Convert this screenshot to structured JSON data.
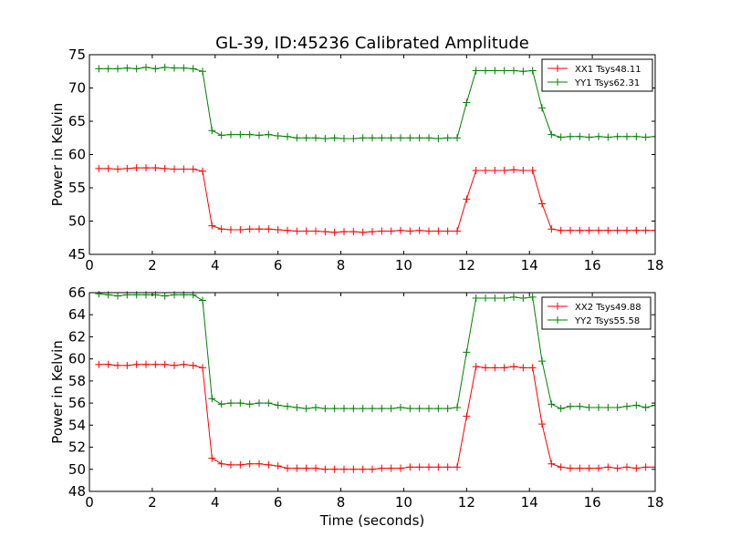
{
  "chart_data": [
    {
      "type": "line",
      "title": "GL-39, ID:45236 Calibrated Amplitude",
      "xlabel": "",
      "ylabel": "Power in Kelvin",
      "xlim": [
        0,
        18
      ],
      "ylim": [
        45,
        75
      ],
      "xticks": [
        "0",
        "2",
        "4",
        "6",
        "8",
        "10",
        "12",
        "14",
        "16",
        "18"
      ],
      "yticks": [
        "45",
        "50",
        "55",
        "60",
        "65",
        "70",
        "75"
      ],
      "legend_position": "top-right",
      "grid": false,
      "x": [
        0.3,
        0.6,
        0.9,
        1.2,
        1.5,
        1.8,
        2.1,
        2.4,
        2.7,
        3.0,
        3.3,
        3.6,
        3.9,
        4.2,
        4.5,
        4.8,
        5.1,
        5.4,
        5.7,
        6.0,
        6.3,
        6.6,
        6.9,
        7.2,
        7.5,
        7.8,
        8.1,
        8.4,
        8.7,
        9.0,
        9.3,
        9.6,
        9.9,
        10.2,
        10.5,
        10.8,
        11.1,
        11.4,
        11.7,
        12.0,
        12.3,
        12.6,
        12.9,
        13.2,
        13.5,
        13.8,
        14.1,
        14.4,
        14.7,
        15.0,
        15.3,
        15.6,
        15.9,
        16.2,
        16.5,
        16.8,
        17.1,
        17.4,
        17.7,
        18.0
      ],
      "series": [
        {
          "name": "XX1 Tsys48.11",
          "color": "#ff0000",
          "values": [
            57.9,
            57.9,
            57.8,
            57.9,
            58.0,
            58.0,
            58.0,
            57.9,
            57.8,
            57.8,
            57.8,
            57.5,
            49.3,
            48.8,
            48.7,
            48.7,
            48.8,
            48.8,
            48.8,
            48.7,
            48.6,
            48.5,
            48.5,
            48.5,
            48.4,
            48.3,
            48.4,
            48.4,
            48.3,
            48.4,
            48.5,
            48.5,
            48.6,
            48.5,
            48.6,
            48.5,
            48.5,
            48.5,
            48.5,
            53.3,
            57.6,
            57.6,
            57.6,
            57.6,
            57.7,
            57.6,
            57.6,
            52.6,
            48.8,
            48.6,
            48.6,
            48.6,
            48.6,
            48.6,
            48.6,
            48.6,
            48.6,
            48.6,
            48.6,
            48.6
          ]
        },
        {
          "name": "YY1 Tsys62.31",
          "color": "#008000",
          "values": [
            72.9,
            72.9,
            72.9,
            73.0,
            72.9,
            73.1,
            72.9,
            73.1,
            73.0,
            73.0,
            72.9,
            72.5,
            63.6,
            62.9,
            63.0,
            63.0,
            63.0,
            62.9,
            63.0,
            62.8,
            62.7,
            62.5,
            62.5,
            62.5,
            62.4,
            62.5,
            62.4,
            62.4,
            62.5,
            62.5,
            62.5,
            62.5,
            62.5,
            62.5,
            62.5,
            62.5,
            62.4,
            62.5,
            62.5,
            67.8,
            72.6,
            72.6,
            72.6,
            72.6,
            72.6,
            72.5,
            72.6,
            67.0,
            63.0,
            62.6,
            62.7,
            62.7,
            62.6,
            62.7,
            62.6,
            62.7,
            62.7,
            62.7,
            62.6,
            62.7
          ]
        }
      ]
    },
    {
      "type": "line",
      "title": "",
      "xlabel": "Time (seconds)",
      "ylabel": "Power in Kelvin",
      "xlim": [
        0,
        18
      ],
      "ylim": [
        48,
        66
      ],
      "xticks": [
        "0",
        "2",
        "4",
        "6",
        "8",
        "10",
        "12",
        "14",
        "16",
        "18"
      ],
      "yticks": [
        "48",
        "50",
        "52",
        "54",
        "56",
        "58",
        "60",
        "62",
        "64",
        "66"
      ],
      "legend_position": "top-right",
      "grid": false,
      "x": [
        0.3,
        0.6,
        0.9,
        1.2,
        1.5,
        1.8,
        2.1,
        2.4,
        2.7,
        3.0,
        3.3,
        3.6,
        3.9,
        4.2,
        4.5,
        4.8,
        5.1,
        5.4,
        5.7,
        6.0,
        6.3,
        6.6,
        6.9,
        7.2,
        7.5,
        7.8,
        8.1,
        8.4,
        8.7,
        9.0,
        9.3,
        9.6,
        9.9,
        10.2,
        10.5,
        10.8,
        11.1,
        11.4,
        11.7,
        12.0,
        12.3,
        12.6,
        12.9,
        13.2,
        13.5,
        13.8,
        14.1,
        14.4,
        14.7,
        15.0,
        15.3,
        15.6,
        15.9,
        16.2,
        16.5,
        16.8,
        17.1,
        17.4,
        17.7,
        18.0
      ],
      "series": [
        {
          "name": "XX2 Tsys49.88",
          "color": "#ff0000",
          "values": [
            59.5,
            59.5,
            59.4,
            59.4,
            59.5,
            59.5,
            59.5,
            59.5,
            59.4,
            59.5,
            59.4,
            59.2,
            51.0,
            50.5,
            50.4,
            50.4,
            50.5,
            50.5,
            50.4,
            50.3,
            50.1,
            50.1,
            50.1,
            50.1,
            50.0,
            50.0,
            50.0,
            50.0,
            50.0,
            50.0,
            50.1,
            50.1,
            50.1,
            50.2,
            50.2,
            50.2,
            50.2,
            50.2,
            50.2,
            54.8,
            59.3,
            59.2,
            59.2,
            59.2,
            59.3,
            59.2,
            59.2,
            54.1,
            50.5,
            50.2,
            50.1,
            50.1,
            50.1,
            50.1,
            50.2,
            50.1,
            50.2,
            50.1,
            50.2,
            50.2
          ]
        },
        {
          "name": "YY2 Tsys55.58",
          "color": "#008000",
          "values": [
            65.9,
            65.8,
            65.7,
            65.8,
            65.8,
            65.8,
            65.8,
            65.7,
            65.8,
            65.8,
            65.8,
            65.3,
            56.4,
            55.9,
            56.0,
            56.0,
            55.9,
            56.0,
            56.0,
            55.8,
            55.7,
            55.6,
            55.5,
            55.6,
            55.5,
            55.5,
            55.5,
            55.5,
            55.5,
            55.5,
            55.5,
            55.5,
            55.6,
            55.5,
            55.5,
            55.5,
            55.5,
            55.5,
            55.6,
            60.6,
            65.5,
            65.5,
            65.5,
            65.5,
            65.6,
            65.5,
            65.6,
            59.8,
            55.9,
            55.5,
            55.7,
            55.7,
            55.6,
            55.6,
            55.6,
            55.6,
            55.7,
            55.8,
            55.6,
            55.8
          ]
        }
      ]
    }
  ]
}
